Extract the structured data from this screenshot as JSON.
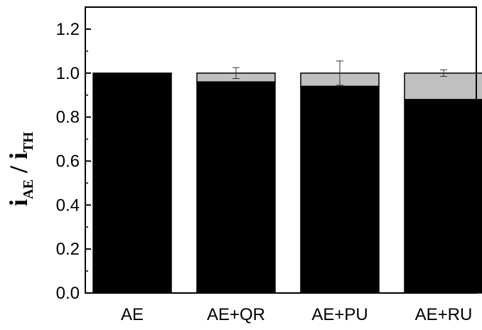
{
  "chart_data": {
    "type": "bar",
    "stacked": true,
    "categories": [
      "AE",
      "AE+QR",
      "AE+PU",
      "AE+RU"
    ],
    "series": [
      {
        "values": [
          1.0,
          0.96,
          0.94,
          0.88
        ],
        "color": "#000000"
      },
      {
        "values": [
          0.0,
          0.04,
          0.06,
          0.12
        ],
        "color": "#c0c0c0"
      }
    ],
    "error_bars": {
      "center": [
        null,
        1.0,
        1.0,
        1.0
      ],
      "err": [
        null,
        0.025,
        0.055,
        0.015
      ]
    },
    "ylabel": {
      "main_1": "i",
      "sub_1": "AE",
      "slash": " / ",
      "main_2": "i",
      "sub_2": "TH"
    },
    "ylim": [
      0,
      1.3
    ],
    "yticks": [
      "0.0",
      "0.2",
      "0.4",
      "0.6",
      "0.8",
      "1.0",
      "1.2"
    ],
    "ytick_values": [
      0,
      0.2,
      0.4,
      0.6,
      0.8,
      1.0,
      1.2
    ],
    "grid": false,
    "legend": "none"
  }
}
